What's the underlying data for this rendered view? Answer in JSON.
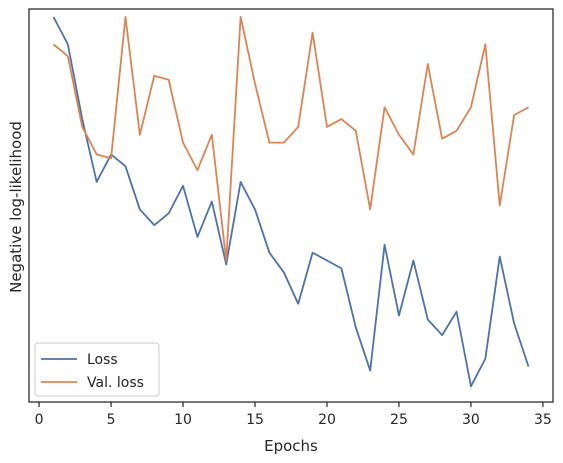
{
  "chart_data": {
    "type": "line",
    "xlabel": "Epochs",
    "ylabel": "Negative log-likelihood",
    "xlim": [
      -0.7,
      35.7
    ],
    "ylim": [
      0,
      100
    ],
    "xticks": [
      0,
      5,
      10,
      15,
      20,
      25,
      30,
      35
    ],
    "yticks_visible": false,
    "grid": false,
    "legend": {
      "position": "lower-left"
    },
    "x": [
      1,
      2,
      3,
      4,
      5,
      6,
      7,
      8,
      9,
      10,
      11,
      12,
      13,
      14,
      15,
      16,
      17,
      18,
      19,
      20,
      21,
      22,
      23,
      24,
      25,
      26,
      27,
      28,
      29,
      30,
      31,
      32,
      33,
      34
    ],
    "series": [
      {
        "name": "Loss",
        "color": "#4c72b0",
        "values": [
          98,
          91,
          72,
          56,
          63,
          60,
          49,
          45,
          48,
          55,
          42,
          51,
          35,
          56,
          49,
          38,
          33,
          25,
          38,
          36,
          34,
          19,
          8,
          40,
          22,
          36,
          21,
          17,
          23,
          4,
          11,
          37,
          20,
          9
        ]
      },
      {
        "name": "Val. loss",
        "color": "#dd8452",
        "values": [
          91,
          88,
          70,
          63,
          62,
          98,
          68,
          83,
          82,
          66,
          59,
          68,
          36,
          98,
          81,
          66,
          66,
          70,
          94,
          70,
          72,
          69,
          49,
          75,
          68,
          63,
          86,
          67,
          69,
          75,
          91,
          50,
          73,
          75
        ]
      }
    ]
  }
}
